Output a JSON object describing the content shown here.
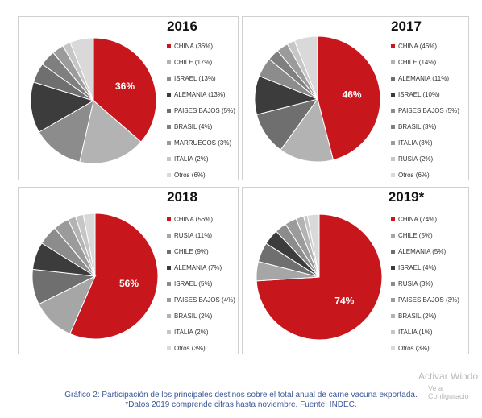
{
  "chart_data": [
    {
      "type": "pie",
      "title": "2016",
      "categories": [
        "CHINA (36%)",
        "CHILE (17%)",
        "ISRAEL (13%)",
        "ALEMANIA (13%)",
        "PAISES BAJOS (5%)",
        "BRASIL (4%)",
        "MARRUECOS (3%)",
        "ITALIA (2%)",
        "Otros (6%)"
      ],
      "values": [
        36,
        17,
        13,
        13,
        5,
        4,
        3,
        2,
        6
      ],
      "colors": [
        "#c8161d",
        "#b3b3b3",
        "#8c8c8c",
        "#3c3c3c",
        "#6f6f6f",
        "#7f7f7f",
        "#9b9b9b",
        "#c6c6c6",
        "#d9d9d9"
      ],
      "data_labels": [
        "36%"
      ]
    },
    {
      "type": "pie",
      "title": "2017",
      "categories": [
        "CHINA (46%)",
        "CHILE (14%)",
        "ALEMANIA (11%)",
        "ISRAEL (10%)",
        "PAISES BAJOS (5%)",
        "BRASIL (3%)",
        "ITALIA (3%)",
        "RUSIA (2%)",
        "Otros (6%)"
      ],
      "values": [
        46,
        14,
        11,
        10,
        5,
        3,
        3,
        2,
        6
      ],
      "colors": [
        "#c8161d",
        "#b3b3b3",
        "#6f6f6f",
        "#3c3c3c",
        "#8c8c8c",
        "#7f7f7f",
        "#9b9b9b",
        "#c6c6c6",
        "#d9d9d9"
      ],
      "data_labels": [
        "46%"
      ]
    },
    {
      "type": "pie",
      "title": "2018",
      "categories": [
        "CHINA (56%)",
        "RUSIA (11%)",
        "CHILE (9%)",
        "ALEMANIA (7%)",
        "ISRAEL (5%)",
        "PAISES BAJOS (4%)",
        "BRASIL (2%)",
        "ITALIA (2%)",
        "Otros (3%)"
      ],
      "values": [
        56,
        11,
        9,
        7,
        5,
        4,
        2,
        2,
        3
      ],
      "colors": [
        "#c8161d",
        "#a6a6a6",
        "#6f6f6f",
        "#3c3c3c",
        "#8c8c8c",
        "#9b9b9b",
        "#b3b3b3",
        "#c6c6c6",
        "#d9d9d9"
      ],
      "data_labels": [
        "56%"
      ]
    },
    {
      "type": "pie",
      "title": "2019*",
      "categories": [
        "CHINA (74%)",
        "CHILE (5%)",
        "ALEMANIA (5%)",
        "ISRAEL (4%)",
        "RUSIA (3%)",
        "PAISES BAJOS (3%)",
        "BRASIL (2%)",
        "ITALIA (1%)",
        "Otros (3%)"
      ],
      "values": [
        74,
        5,
        5,
        4,
        3,
        3,
        2,
        1,
        3
      ],
      "colors": [
        "#c8161d",
        "#a6a6a6",
        "#6f6f6f",
        "#3c3c3c",
        "#8c8c8c",
        "#9b9b9b",
        "#b3b3b3",
        "#c6c6c6",
        "#d9d9d9"
      ],
      "data_labels": [
        "74%"
      ]
    }
  ],
  "caption": {
    "line1": "Gráfico 2: Participación de los principales destinos sobre el total anual de carne vacuna exportada.",
    "line2": "*Datos 2019 comprende cifras hasta noviembre. Fuente: INDEC."
  },
  "watermark": {
    "line1": "Activar Windo",
    "line2": "Ve a Configuració"
  }
}
